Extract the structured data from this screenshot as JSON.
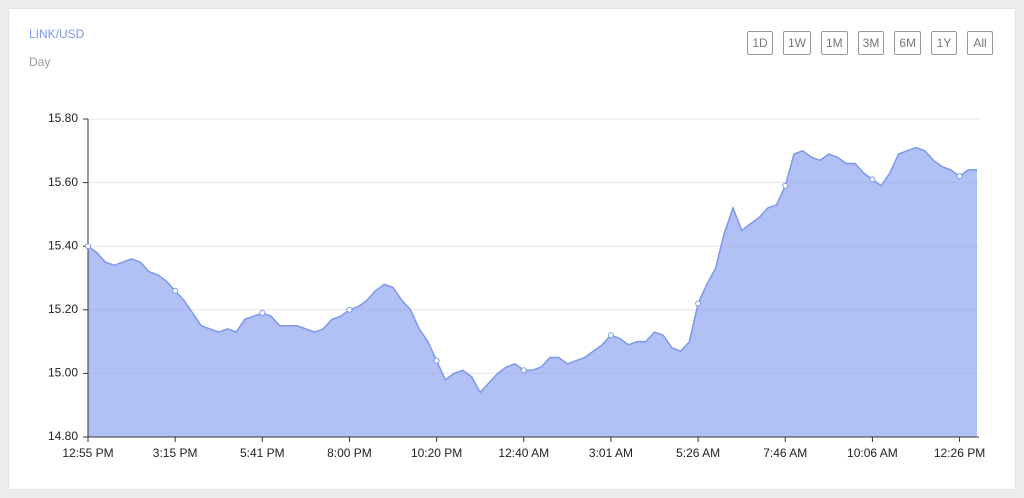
{
  "chart_data": {
    "type": "area",
    "title": "LINK/USD",
    "subtitle": "Day",
    "categories": [
      "12:55 PM",
      null,
      null,
      null,
      null,
      null,
      null,
      null,
      null,
      null,
      "3:15 PM",
      null,
      null,
      null,
      null,
      null,
      null,
      null,
      null,
      null,
      "5:41 PM",
      null,
      null,
      null,
      null,
      null,
      null,
      null,
      null,
      null,
      "8:00 PM",
      null,
      null,
      null,
      null,
      null,
      null,
      null,
      null,
      null,
      "10:20 PM",
      null,
      null,
      null,
      null,
      null,
      null,
      null,
      null,
      null,
      "12:40 AM",
      null,
      null,
      null,
      null,
      null,
      null,
      null,
      null,
      null,
      "3:01 AM",
      null,
      null,
      null,
      null,
      null,
      null,
      null,
      null,
      null,
      "5:26 AM",
      null,
      null,
      null,
      null,
      null,
      null,
      null,
      null,
      null,
      "7:46 AM",
      null,
      null,
      null,
      null,
      null,
      null,
      null,
      null,
      null,
      "10:06 AM",
      null,
      null,
      null,
      null,
      null,
      null,
      null,
      null,
      null,
      "12:26 PM",
      null,
      null
    ],
    "values": [
      15.4,
      15.38,
      15.35,
      15.34,
      15.35,
      15.36,
      15.35,
      15.32,
      15.31,
      15.29,
      15.26,
      15.23,
      15.19,
      15.15,
      15.14,
      15.13,
      15.14,
      15.13,
      15.17,
      15.18,
      15.19,
      15.18,
      15.15,
      15.15,
      15.15,
      15.14,
      15.13,
      15.14,
      15.17,
      15.18,
      15.2,
      15.21,
      15.23,
      15.26,
      15.28,
      15.27,
      15.23,
      15.2,
      15.14,
      15.1,
      15.04,
      14.98,
      15.0,
      15.01,
      14.99,
      14.94,
      14.97,
      15.0,
      15.02,
      15.03,
      15.01,
      15.01,
      15.02,
      15.05,
      15.05,
      15.03,
      15.04,
      15.05,
      15.07,
      15.09,
      15.12,
      15.11,
      15.09,
      15.1,
      15.1,
      15.13,
      15.12,
      15.08,
      15.07,
      15.1,
      15.22,
      15.28,
      15.33,
      15.44,
      15.52,
      15.45,
      15.47,
      15.49,
      15.52,
      15.53,
      15.59,
      15.69,
      15.7,
      15.68,
      15.67,
      15.69,
      15.68,
      15.66,
      15.66,
      15.63,
      15.61,
      15.59,
      15.63,
      15.69,
      15.7,
      15.71,
      15.7,
      15.67,
      15.65,
      15.64,
      15.62,
      15.64,
      15.64
    ],
    "color": "#7d97ee",
    "ylim": [
      14.8,
      15.8
    ],
    "yticks": [
      {
        "value": 14.8,
        "label": "14.80"
      },
      {
        "value": 15,
        "label": "15.00"
      },
      {
        "value": 15.2,
        "label": "15.20"
      },
      {
        "value": 15.4,
        "label": "15.40"
      },
      {
        "value": 15.6,
        "label": "15.60"
      },
      {
        "value": 15.8,
        "label": "15.80"
      }
    ],
    "grid": true
  },
  "range_buttons": [
    "1D",
    "1W",
    "1M",
    "3M",
    "6M",
    "1Y",
    "All"
  ]
}
